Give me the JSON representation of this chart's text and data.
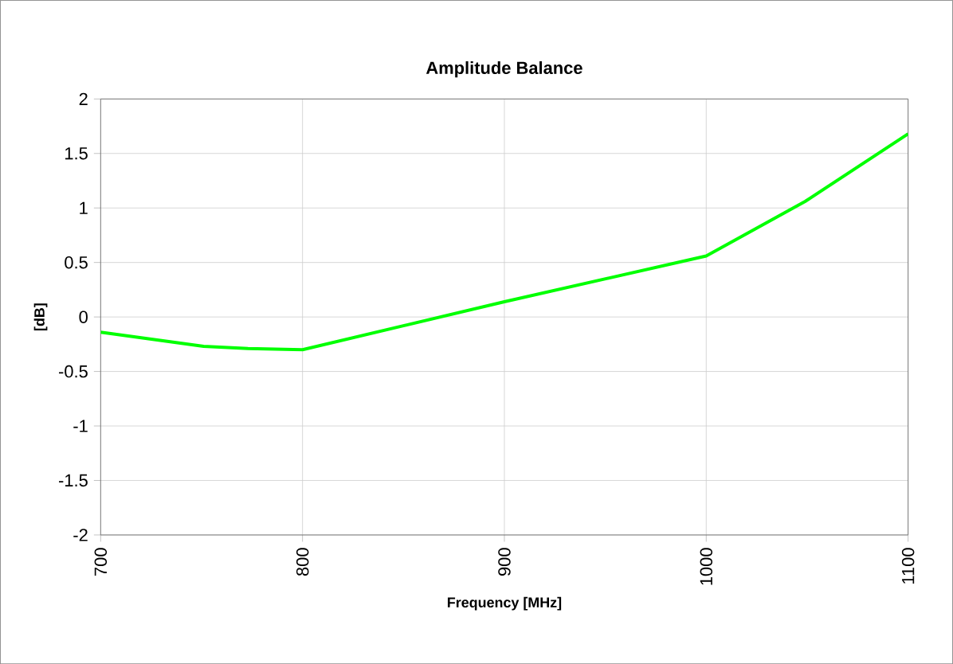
{
  "chart_data": {
    "type": "line",
    "title": "Amplitude Balance",
    "xlabel": "Frequency [MHz]",
    "ylabel": "[dB]",
    "x": [
      700,
      751,
      773,
      800,
      900,
      1000,
      1049,
      1100
    ],
    "series": [
      {
        "color": "#00ff00",
        "values": [
          -0.14,
          -0.27,
          -0.29,
          -0.3,
          0.14,
          0.56,
          1.06,
          1.68
        ]
      }
    ],
    "xlim": [
      700,
      1100
    ],
    "xticks": [
      700,
      800,
      900,
      1000,
      1100
    ],
    "ylim": [
      -2,
      2
    ],
    "yticks": [
      -2,
      -1.5,
      -1,
      -0.5,
      0,
      0.5,
      1,
      1.5,
      2
    ],
    "grid": true,
    "marker": "none",
    "line_style": "solid"
  }
}
